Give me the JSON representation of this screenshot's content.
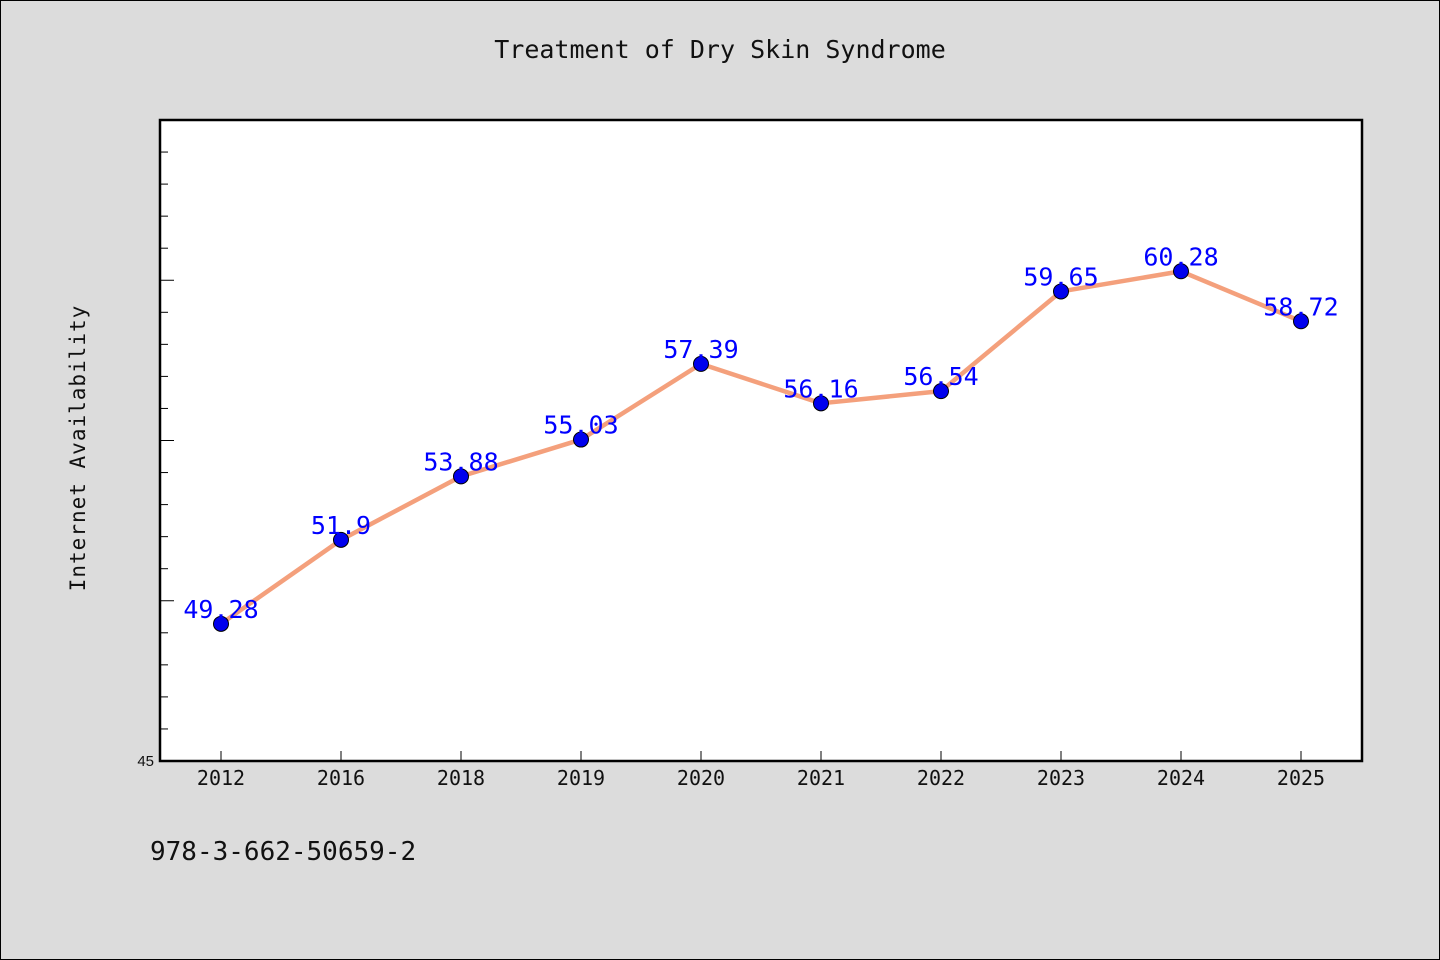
{
  "chart_data": {
    "type": "line",
    "title": "Treatment of Dry Skin Syndrome",
    "xlabel": "",
    "ylabel": "Internet Availability",
    "categories": [
      "2012",
      "2016",
      "2018",
      "2019",
      "2020",
      "2021",
      "2022",
      "2023",
      "2024",
      "2025"
    ],
    "series": [
      {
        "values": [
          49.28,
          51.9,
          53.88,
          55.03,
          57.39,
          56.16,
          56.54,
          59.65,
          60.28,
          58.72
        ]
      }
    ],
    "data_labels": [
      "49.28",
      "51.9",
      "53.88",
      "55.03",
      "57.39",
      "56.16",
      "56.54",
      "59.65",
      "60.28",
      "58.72"
    ],
    "y_tick_labels": [
      "45"
    ],
    "ylim": [
      45,
      65
    ],
    "grid": false,
    "legend": "none"
  },
  "footer_text": "978-3-662-50659-2",
  "colors": {
    "line": "#f4a07c",
    "marker": "#0000ee",
    "data_label": "#0000ff",
    "plot_background": "#ffffff",
    "figure_background": "#dcdcdc"
  }
}
